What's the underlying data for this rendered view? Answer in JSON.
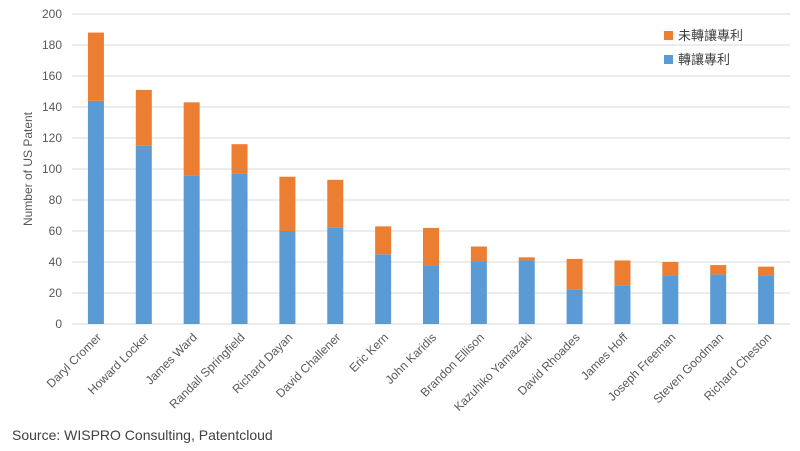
{
  "chart_data": {
    "type": "bar",
    "stacked": true,
    "ylabel": "Number of US Patent",
    "ylim": [
      0,
      200
    ],
    "yticks": [
      0,
      20,
      40,
      60,
      80,
      100,
      120,
      140,
      160,
      180,
      200
    ],
    "grid": true,
    "legend_position": "top-right",
    "categories": [
      "Daryl Cromer",
      "Howard Locker",
      "James Ward",
      "Randall Springfield",
      "Richard Dayan",
      "David Challener",
      "Eric Kern",
      "John Karidis",
      "Brandon Ellison",
      "Kazuhiko Yamazaki",
      "David Rhoades",
      "James Hoff",
      "Joseph Freeman",
      "Steven Goodman",
      "Richard Cheston"
    ],
    "series": [
      {
        "name": "轉讓專利",
        "color": "#5B9BD5",
        "values": [
          144,
          115,
          96,
          97,
          60,
          62,
          45,
          38,
          40,
          41,
          22,
          25,
          31,
          32,
          31
        ]
      },
      {
        "name": "未轉讓專利",
        "color": "#ED7D31",
        "values": [
          44,
          36,
          47,
          19,
          35,
          31,
          18,
          24,
          10,
          2,
          20,
          16,
          9,
          6,
          6
        ]
      }
    ],
    "legend_order": [
      "未轉讓專利",
      "轉讓專利"
    ]
  },
  "footer": {
    "source": "Source: WISPRO Consulting, Patentcloud"
  }
}
